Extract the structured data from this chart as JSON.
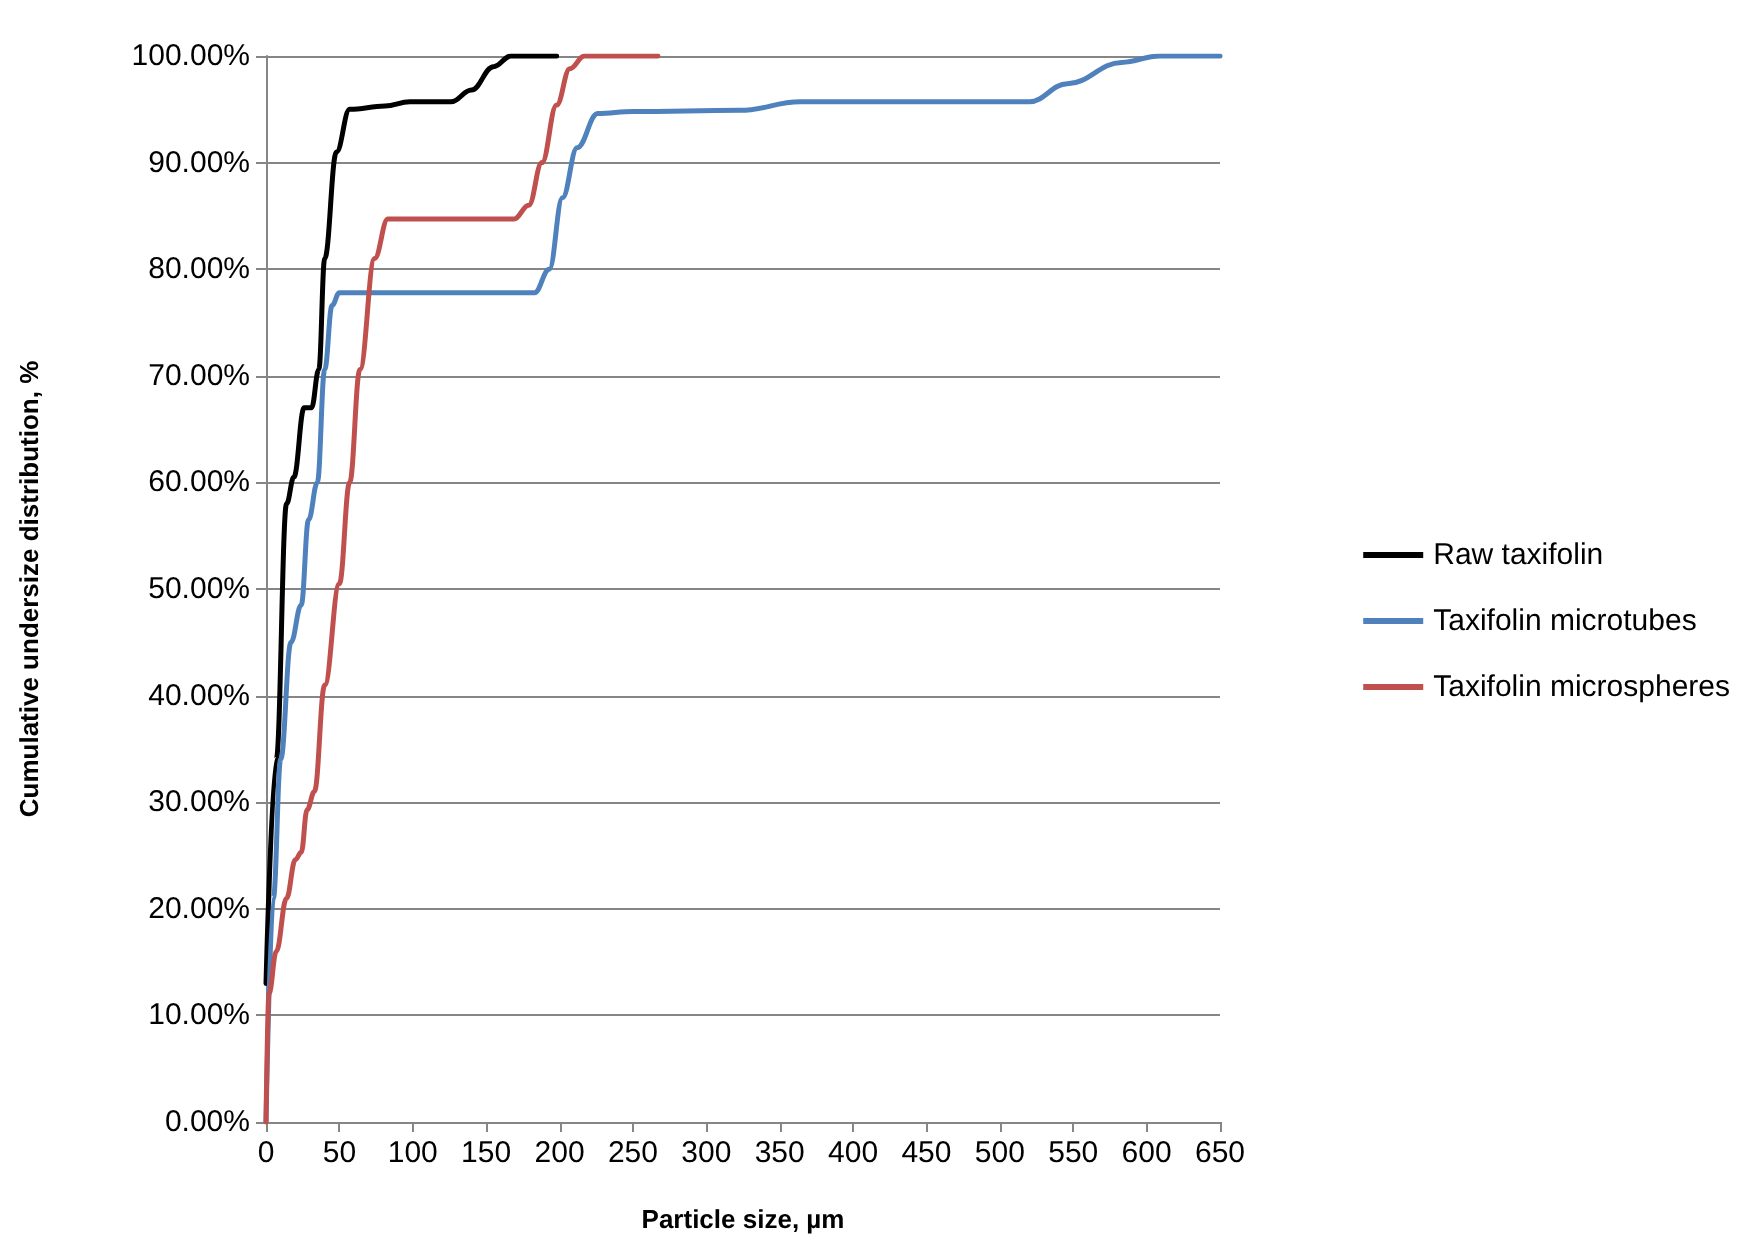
{
  "chart_data": {
    "type": "line",
    "xlabel": "Particle size, µm",
    "ylabel": "Cumulative undersize distribution, %",
    "xlim": [
      0,
      650
    ],
    "xticks": [
      0,
      50,
      100,
      150,
      200,
      250,
      300,
      350,
      400,
      450,
      500,
      550,
      600,
      650
    ],
    "ylim": [
      0,
      100
    ],
    "yticks": [
      {
        "value": 0,
        "label": "0.00%"
      },
      {
        "value": 10,
        "label": "10.00%"
      },
      {
        "value": 20,
        "label": "20.00%"
      },
      {
        "value": 30,
        "label": "30.00%"
      },
      {
        "value": 40,
        "label": "40.00%"
      },
      {
        "value": 50,
        "label": "50.00%"
      },
      {
        "value": 60,
        "label": "60.00%"
      },
      {
        "value": 70,
        "label": "70.00%"
      },
      {
        "value": 80,
        "label": "80.00%"
      },
      {
        "value": 90,
        "label": "90.00%"
      },
      {
        "value": 100,
        "label": "100.00%"
      }
    ],
    "grid": "y",
    "legend": "right",
    "marker": "none",
    "line_style": "solid",
    "series": [
      {
        "name": "Raw taxifolin",
        "color": "#000000",
        "x": [
          0,
          7,
          14,
          19,
          26,
          31,
          36,
          40,
          48,
          57,
          81,
          98,
          126,
          140,
          155,
          167,
          198
        ],
        "values": [
          13,
          34,
          58,
          60.5,
          67,
          67,
          70.6,
          81,
          91,
          95,
          95.3,
          95.7,
          95.7,
          96.8,
          99,
          100,
          100
        ]
      },
      {
        "name": "Taxifolin microtubes",
        "color": "#4f81bd",
        "x": [
          0,
          5,
          10,
          17,
          24,
          29,
          35,
          40,
          45,
          50,
          183,
          193,
          202,
          212,
          226,
          250,
          323,
          364,
          520,
          546,
          583,
          609,
          650
        ],
        "values": [
          0,
          21,
          34,
          45,
          48.5,
          56.5,
          60,
          70.6,
          76.6,
          77.8,
          77.8,
          80,
          86.7,
          91.4,
          94.6,
          94.8,
          94.9,
          95.7,
          95.7,
          97.4,
          99.4,
          100,
          100
        ]
      },
      {
        "name": "Taxifolin microspheres",
        "color": "#c0504d",
        "x": [
          0,
          2,
          7,
          14,
          20,
          24,
          28,
          33,
          40,
          50,
          57,
          64,
          74,
          83,
          169,
          179,
          188,
          198,
          207,
          217,
          267
        ],
        "values": [
          0,
          12,
          16,
          21,
          24.6,
          25.3,
          29.3,
          31,
          41,
          50.5,
          60,
          70.6,
          81,
          84.7,
          84.7,
          86,
          90,
          95.4,
          98.8,
          100,
          100
        ]
      }
    ]
  }
}
